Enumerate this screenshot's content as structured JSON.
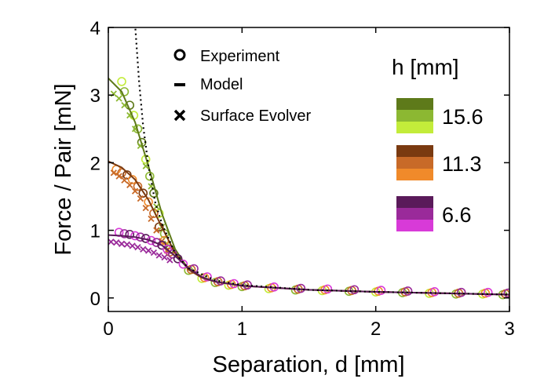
{
  "chart_data": {
    "type": "scatter",
    "xlabel": "Separation, d [mm]",
    "ylabel": "Force / Pair [mN]",
    "xlim": [
      0,
      3
    ],
    "ylim": [
      -0.2,
      4
    ],
    "xticks": [
      "0",
      "1",
      "2",
      "3"
    ],
    "yticks": [
      "0",
      "1",
      "2",
      "3",
      "4"
    ],
    "legend_markers": {
      "experiment": "Experiment",
      "model": "Model",
      "surface_evolver": "Surface Evolver"
    },
    "legend_title": "h [mm]",
    "series": [
      {
        "name": "15.6",
        "h": 15.6,
        "dark": "#5e7a1a",
        "mid": "#8cb832",
        "light": "#c3ec3a",
        "experiment_x": [
          0.1,
          0.12,
          0.16,
          0.19,
          0.22,
          0.25,
          0.28,
          0.31,
          0.34,
          0.38,
          0.42,
          0.46
        ],
        "experiment_y": [
          3.2,
          3.05,
          2.85,
          2.7,
          2.5,
          2.3,
          2.05,
          1.8,
          1.55,
          1.25,
          0.95,
          0.72
        ],
        "evolver_x": [
          0.04,
          0.08,
          0.12,
          0.16,
          0.2,
          0.24,
          0.28,
          0.32,
          0.36,
          0.4,
          0.44
        ],
        "evolver_y": [
          3.02,
          2.95,
          2.85,
          2.7,
          2.5,
          2.25,
          1.95,
          1.65,
          1.35,
          1.05,
          0.8
        ],
        "model_x": [
          0,
          0.1,
          0.2,
          0.3,
          0.4,
          0.5,
          0.6,
          0.7,
          0.8,
          1.0,
          1.5,
          2.0,
          2.5,
          3.0
        ],
        "model_y": [
          3.25,
          3.05,
          2.6,
          1.95,
          1.25,
          0.72,
          0.42,
          0.3,
          0.24,
          0.18,
          0.12,
          0.09,
          0.07,
          0.05
        ]
      },
      {
        "name": "11.3",
        "h": 11.3,
        "dark": "#7a3a10",
        "mid": "#c86a28",
        "light": "#f08a2a",
        "experiment_x": [
          0.06,
          0.1,
          0.14,
          0.18,
          0.22,
          0.26,
          0.3,
          0.34,
          0.38,
          0.42,
          0.46
        ],
        "experiment_y": [
          1.9,
          1.85,
          1.82,
          1.75,
          1.65,
          1.55,
          1.42,
          1.25,
          1.05,
          0.85,
          0.68
        ],
        "evolver_x": [
          0.04,
          0.08,
          0.12,
          0.16,
          0.2,
          0.24,
          0.28,
          0.32,
          0.36,
          0.4,
          0.44
        ],
        "evolver_y": [
          1.85,
          1.8,
          1.74,
          1.67,
          1.58,
          1.47,
          1.33,
          1.17,
          1.0,
          0.84,
          0.7
        ],
        "model_x": [
          0,
          0.1,
          0.2,
          0.3,
          0.4,
          0.5,
          0.6,
          0.7,
          0.8,
          1.0,
          1.5,
          2.0,
          2.5,
          3.0
        ],
        "model_y": [
          2.02,
          1.93,
          1.75,
          1.45,
          1.05,
          0.66,
          0.42,
          0.3,
          0.24,
          0.18,
          0.12,
          0.09,
          0.07,
          0.05
        ]
      },
      {
        "name": "6.6",
        "h": 6.6,
        "dark": "#5a1a5a",
        "mid": "#9a2a9a",
        "light": "#d83ad8",
        "experiment_x": [
          0.08,
          0.12,
          0.16,
          0.2,
          0.24,
          0.28,
          0.32,
          0.36,
          0.4,
          0.44,
          0.48,
          0.52,
          0.56
        ],
        "experiment_y": [
          0.97,
          0.95,
          0.94,
          0.92,
          0.9,
          0.88,
          0.85,
          0.82,
          0.78,
          0.72,
          0.65,
          0.58,
          0.5
        ],
        "evolver_x": [
          0.02,
          0.06,
          0.1,
          0.14,
          0.18,
          0.22,
          0.26,
          0.3,
          0.34,
          0.38,
          0.42,
          0.46
        ],
        "evolver_y": [
          0.83,
          0.82,
          0.8,
          0.79,
          0.77,
          0.75,
          0.72,
          0.7,
          0.67,
          0.63,
          0.6,
          0.56
        ],
        "model_x": [
          0,
          0.1,
          0.2,
          0.3,
          0.4,
          0.5,
          0.6,
          0.7,
          0.8,
          1.0,
          1.5,
          2.0,
          2.5,
          3.0
        ],
        "model_y": [
          0.93,
          0.92,
          0.9,
          0.86,
          0.78,
          0.62,
          0.44,
          0.31,
          0.24,
          0.18,
          0.12,
          0.09,
          0.07,
          0.05
        ]
      }
    ],
    "asymptote": {
      "style": "dotted",
      "x": [
        0.2,
        0.23,
        0.26,
        0.3,
        0.35,
        0.4,
        0.5,
        0.6,
        0.8,
        1.0,
        1.5,
        2.0,
        2.5,
        3.0
      ],
      "y": [
        4.05,
        3.2,
        2.55,
        1.95,
        1.42,
        1.1,
        0.66,
        0.44,
        0.26,
        0.19,
        0.12,
        0.09,
        0.07,
        0.05
      ]
    },
    "tail_experiment": {
      "x": [
        0.6,
        0.7,
        0.8,
        0.9,
        1.0,
        1.2,
        1.4,
        1.6,
        1.8,
        2.0,
        2.2,
        2.4,
        2.6,
        2.8,
        2.95
      ],
      "y": [
        0.42,
        0.3,
        0.24,
        0.2,
        0.18,
        0.15,
        0.13,
        0.12,
        0.11,
        0.1,
        0.09,
        0.08,
        0.07,
        0.07,
        0.06
      ]
    }
  }
}
